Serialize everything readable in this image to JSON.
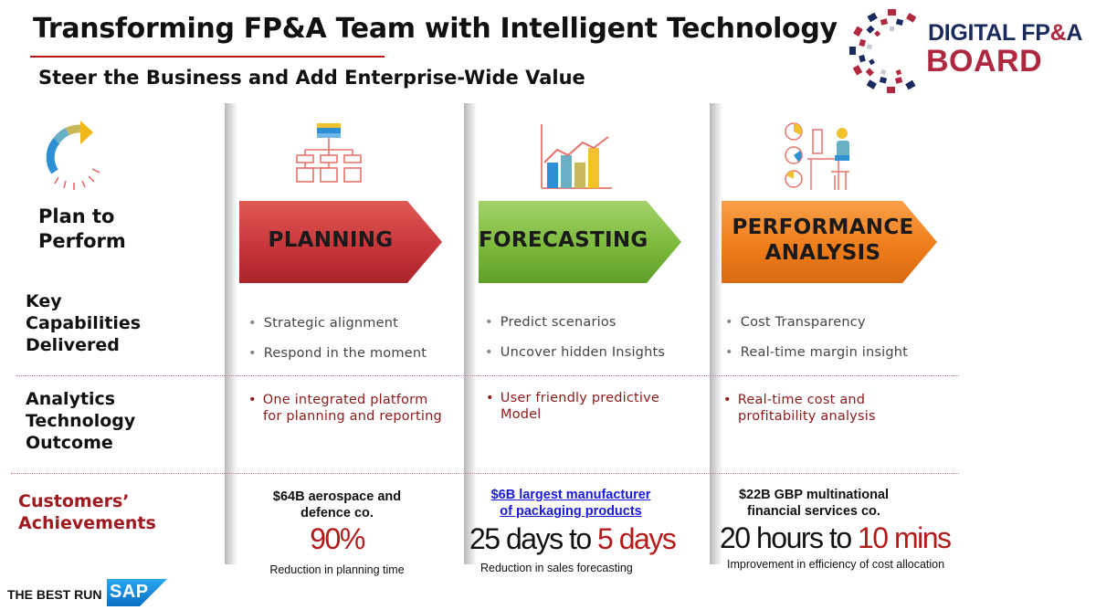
{
  "header": {
    "title": "Transforming FP&A Team with Intelligent Technology",
    "subtitle": "Steer the  Business and Add Enterprise-Wide Value"
  },
  "logo": {
    "line1_a": "DIGITAL FP",
    "line1_amp": "&",
    "line1_b": "A",
    "line2": "BOARD"
  },
  "row_labels": {
    "plan_line1": "Plan to",
    "plan_line2": "Perform",
    "key_line1": "Key",
    "key_line2": "Capabilities",
    "key_line3": "Delivered",
    "analytics_line1": "Analytics",
    "analytics_line2": "Technology",
    "analytics_line3": "Outcome",
    "customers_line1": "Customers’",
    "customers_line2": "Achievements"
  },
  "columns": [
    {
      "arrow_label_1": "PLANNING",
      "arrow_label_2": "",
      "capabilities": [
        "Strategic alignment",
        "Respond in the moment"
      ],
      "outcome": [
        "One integrated platform",
        "for planning and reporting"
      ],
      "achievement_head": [
        "$64B aerospace and",
        "defence co."
      ],
      "big_prefix": "",
      "big_highlight": "90%",
      "big_suffix": "",
      "note": "Reduction in planning time"
    },
    {
      "arrow_label_1": "FORECASTING",
      "arrow_label_2": "",
      "capabilities": [
        "Predict scenarios",
        "Uncover hidden Insights"
      ],
      "outcome": [
        "User friendly predictive",
        "Model"
      ],
      "achievement_head": [
        "$6B largest manufacturer",
        "of packaging products"
      ],
      "big_prefix": "25 days to ",
      "big_highlight": "5 days",
      "big_suffix": "",
      "note": "Reduction in sales forecasting"
    },
    {
      "arrow_label_1": "PERFORMANCE",
      "arrow_label_2": "ANALYSIS",
      "capabilities": [
        "Cost Transparency",
        "Real-time margin insight"
      ],
      "outcome": [
        "Real-time cost and",
        "profitability analysis"
      ],
      "achievement_head": [
        "$22B GBP multinational",
        "financial services co."
      ],
      "big_prefix": "20 hours to ",
      "big_highlight": "10 mins",
      "big_suffix": "",
      "note": "Improvement in efficiency of cost allocation"
    }
  ],
  "colors": {
    "planning": "#c8363a",
    "forecasting": "#7cba3c",
    "performance": "#f07d1b",
    "accent_red": "#b41a1a"
  },
  "icons": {
    "plan": "circular-arrow-icon",
    "planning": "org-chart-icon",
    "forecasting": "bar-chart-growth-icon",
    "performance": "analyst-at-desk-icon"
  },
  "footer": {
    "tagline": "THE BEST RUN",
    "brand": "SAP"
  }
}
